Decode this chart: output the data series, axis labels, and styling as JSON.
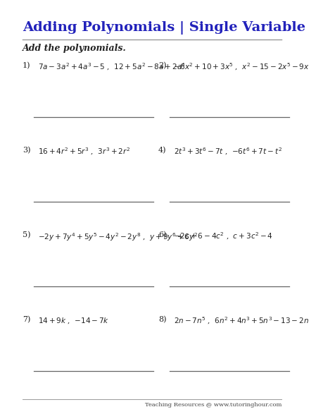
{
  "title": "Adding Polynomials | Single Variable",
  "instruction": "Add the polynomials.",
  "bg_color": "#ffffff",
  "title_color": "#2222bb",
  "text_color": "#222222",
  "line_color": "#999999",
  "footer_color": "#444444",
  "footer_text": "Teaching Resources @ www.tutoringhour.com",
  "problems": [
    {
      "num": "1)",
      "expr": "$7a-3a^2+4a^3-5$ ,  $12+5a^2-8a+2a^4$",
      "col": 0,
      "row": 0
    },
    {
      "num": "2)",
      "expr": "$-6x^2+10+3x^5$ ,  $x^2-15-2x^5-9x$",
      "col": 1,
      "row": 0
    },
    {
      "num": "3)",
      "expr": "$16+4r^2+5r^3$ ,  $3r^3+2r^2$",
      "col": 0,
      "row": 1
    },
    {
      "num": "4)",
      "expr": "$2t^3+3t^6-7t$ ,  $-6t^6+7t-t^2$",
      "col": 1,
      "row": 1
    },
    {
      "num": "5)",
      "expr": "$-2y+7y^4+5y^5-4y^2-2y^8$ ,  $y+9y^6+6y^2$",
      "col": 0,
      "row": 2
    },
    {
      "num": "6)",
      "expr": "$-2c+6-4c^2$ ,  $c+3c^2-4$",
      "col": 1,
      "row": 2
    },
    {
      "num": "7)",
      "expr": "$14+9k$ ,  $-14-7k$",
      "col": 0,
      "row": 3
    },
    {
      "num": "8)",
      "expr": "$2n-7n^5$ ,  $6n^2+4n^3+5n^3-13-2n$",
      "col": 1,
      "row": 3
    }
  ],
  "title_fontsize": 14,
  "instruction_fontsize": 9,
  "num_fontsize": 8,
  "expr_fontsize": 7.5,
  "footer_fontsize": 6
}
